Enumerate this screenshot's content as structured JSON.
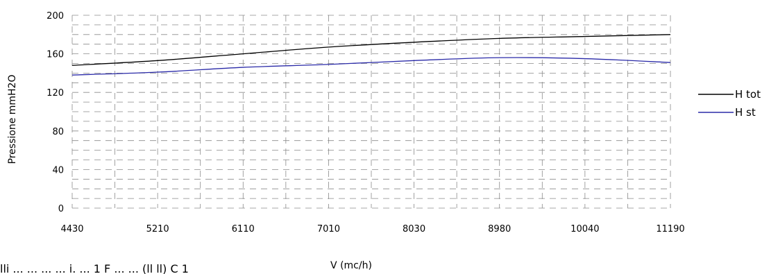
{
  "chart_data": {
    "type": "line",
    "x_categories": [
      "4430",
      "5210",
      "6110",
      "7010",
      "8030",
      "8980",
      "10040",
      "11190"
    ],
    "y_ticks": [
      0,
      40,
      80,
      120,
      160,
      200
    ],
    "ylim": [
      0,
      200
    ],
    "xlabel": "V (mc/h)",
    "ylabel": "Pressione mmH2O",
    "grid": true,
    "legend_position": "right",
    "series": [
      {
        "name": "H tot",
        "color": "#000000",
        "x": [
          4430,
          5210,
          6110,
          7010,
          8030,
          8980,
          10040,
          11190
        ],
        "values": [
          148,
          153,
          160,
          167,
          172,
          176,
          178,
          180
        ]
      },
      {
        "name": "H st",
        "color": "#2a2aa8",
        "x": [
          4430,
          5210,
          6110,
          7010,
          8030,
          8980,
          10040,
          11190
        ],
        "values": [
          138,
          141,
          146,
          149,
          153,
          156,
          155,
          151
        ]
      }
    ]
  },
  "footnote": "lli ... ... ... ... i. ... 1 F ... ... (ll ll) C 1"
}
